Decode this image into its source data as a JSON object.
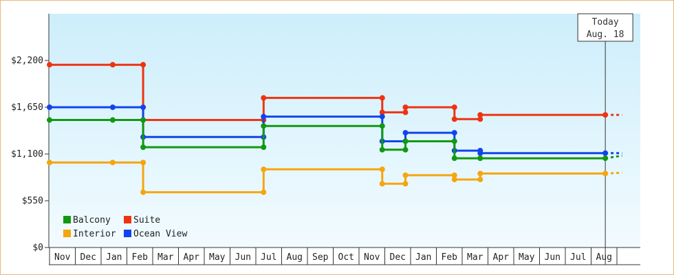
{
  "chart_data": {
    "type": "line",
    "step": true,
    "title": "",
    "xlabel": "",
    "ylabel": "",
    "ylim": [
      0,
      2750
    ],
    "y_ticks": [
      {
        "value": 0,
        "label": "$0"
      },
      {
        "value": 550,
        "label": "$550"
      },
      {
        "value": 1100,
        "label": "$1,100"
      },
      {
        "value": 1650,
        "label": "$1,650"
      },
      {
        "value": 2200,
        "label": "$2,200"
      }
    ],
    "x_months": [
      "Nov",
      "Dec",
      "Jan",
      "Feb",
      "Mar",
      "Apr",
      "May",
      "Jun",
      "Jul",
      "Aug",
      "Sep",
      "Oct",
      "Nov",
      "Dec",
      "Jan",
      "Feb",
      "Mar",
      "Apr",
      "May",
      "Jun",
      "Jul",
      "Aug"
    ],
    "x_range_months": [
      0,
      22.2
    ],
    "today": {
      "line1": "Today",
      "line2": "Aug. 18",
      "x": 21.55
    },
    "grid": false,
    "background_gradient": [
      "#cdeefb",
      "#f2fbff"
    ],
    "legend_position": "bottom-left",
    "legend": [
      {
        "name": "Balcony",
        "color": "#119911"
      },
      {
        "name": "Suite",
        "color": "#ee3311"
      },
      {
        "name": "Interior",
        "color": "#f5a510"
      },
      {
        "name": "Ocean View",
        "color": "#1144ee"
      }
    ],
    "series": [
      {
        "name": "Suite",
        "color": "#ee3311",
        "points": [
          [
            0,
            2150
          ],
          [
            2.45,
            2150
          ],
          [
            3.63,
            2150
          ],
          [
            3.63,
            1500
          ],
          [
            8.3,
            1500
          ],
          [
            8.3,
            1760
          ],
          [
            12.9,
            1760
          ],
          [
            12.9,
            1590
          ],
          [
            13.8,
            1590
          ],
          [
            13.8,
            1650
          ],
          [
            15.7,
            1650
          ],
          [
            15.7,
            1510
          ],
          [
            16.7,
            1510
          ],
          [
            16.7,
            1560
          ],
          [
            21.55,
            1560
          ]
        ],
        "projection": [
          [
            21.55,
            1560
          ],
          [
            22.2,
            1560
          ]
        ]
      },
      {
        "name": "Ocean View",
        "color": "#1144ee",
        "points": [
          [
            0,
            1650
          ],
          [
            2.45,
            1650
          ],
          [
            3.63,
            1650
          ],
          [
            3.63,
            1300
          ],
          [
            8.3,
            1300
          ],
          [
            8.3,
            1540
          ],
          [
            12.9,
            1540
          ],
          [
            12.9,
            1250
          ],
          [
            13.8,
            1250
          ],
          [
            13.8,
            1350
          ],
          [
            15.7,
            1350
          ],
          [
            15.7,
            1140
          ],
          [
            16.7,
            1140
          ],
          [
            16.7,
            1110
          ],
          [
            21.55,
            1110
          ]
        ],
        "projection": [
          [
            21.55,
            1110
          ],
          [
            22.2,
            1110
          ]
        ]
      },
      {
        "name": "Balcony",
        "color": "#119911",
        "points": [
          [
            0,
            1500
          ],
          [
            2.45,
            1500
          ],
          [
            3.63,
            1500
          ],
          [
            3.63,
            1180
          ],
          [
            8.3,
            1180
          ],
          [
            8.3,
            1430
          ],
          [
            12.9,
            1430
          ],
          [
            12.9,
            1150
          ],
          [
            13.8,
            1150
          ],
          [
            13.8,
            1250
          ],
          [
            15.7,
            1250
          ],
          [
            15.7,
            1050
          ],
          [
            16.7,
            1050
          ],
          [
            16.7,
            1050
          ],
          [
            21.55,
            1050
          ]
        ],
        "projection": [
          [
            21.55,
            1050
          ],
          [
            22.2,
            1080
          ]
        ]
      },
      {
        "name": "Interior",
        "color": "#f5a510",
        "points": [
          [
            0,
            1000
          ],
          [
            2.45,
            1000
          ],
          [
            3.63,
            1000
          ],
          [
            3.63,
            650
          ],
          [
            8.3,
            650
          ],
          [
            8.3,
            920
          ],
          [
            12.9,
            920
          ],
          [
            12.9,
            750
          ],
          [
            13.8,
            750
          ],
          [
            13.8,
            850
          ],
          [
            15.7,
            850
          ],
          [
            15.7,
            800
          ],
          [
            16.7,
            800
          ],
          [
            16.7,
            870
          ],
          [
            21.55,
            870
          ]
        ],
        "projection": [
          [
            21.55,
            870
          ],
          [
            22.2,
            880
          ]
        ]
      }
    ]
  }
}
